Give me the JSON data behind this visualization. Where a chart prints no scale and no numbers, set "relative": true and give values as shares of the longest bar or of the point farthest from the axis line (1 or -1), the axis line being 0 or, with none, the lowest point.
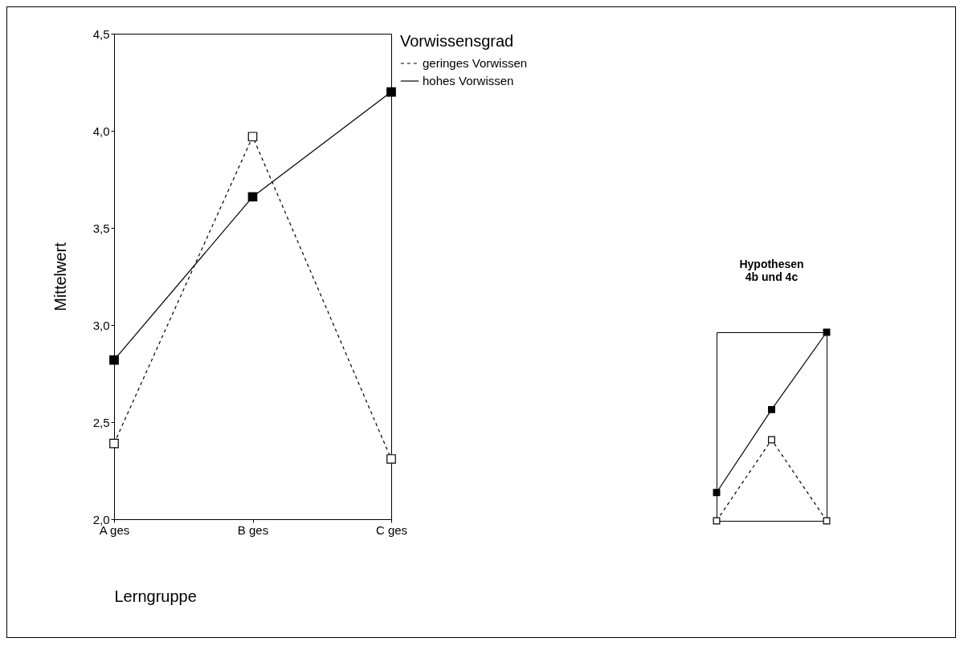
{
  "chart_data": [
    {
      "type": "line",
      "xlabel": "Lerngruppe",
      "ylabel": "Mittelwert",
      "legend_title": "Vorwissensgrad",
      "legend": "right",
      "marker": "square",
      "grid": false,
      "categories": [
        "A ges",
        "B ges",
        "C ges"
      ],
      "ylim": [
        2.0,
        4.5
      ],
      "yticks": [
        {
          "value": 2.0,
          "label": "2,0"
        },
        {
          "value": 2.5,
          "label": "2,5"
        },
        {
          "value": 3.0,
          "label": "3,0"
        },
        {
          "value": 3.5,
          "label": "3,5"
        },
        {
          "value": 4.0,
          "label": "4,0"
        },
        {
          "value": 4.5,
          "label": "4,5"
        }
      ],
      "series": [
        {
          "name": "geringes Vorwissen",
          "color": "#000000",
          "line_style": "dashed",
          "values": [
            2.39,
            3.97,
            2.31
          ]
        },
        {
          "name": "hohes Vorwissen",
          "color": "#000000",
          "line_style": "solid",
          "values": [
            2.82,
            3.66,
            4.2
          ]
        }
      ]
    },
    {
      "type": "line",
      "title": "Hypothesen\n4b und 4c",
      "relative": true,
      "marker": "square",
      "grid": false,
      "legend": false,
      "categories": [
        null,
        null,
        null
      ],
      "series": [
        {
          "color": "#000000",
          "line_style": "dashed",
          "values": [
            0,
            0.43,
            0
          ]
        },
        {
          "color": "#000000",
          "line_style": "solid",
          "values": [
            0.15,
            0.59,
            1
          ]
        }
      ]
    }
  ]
}
